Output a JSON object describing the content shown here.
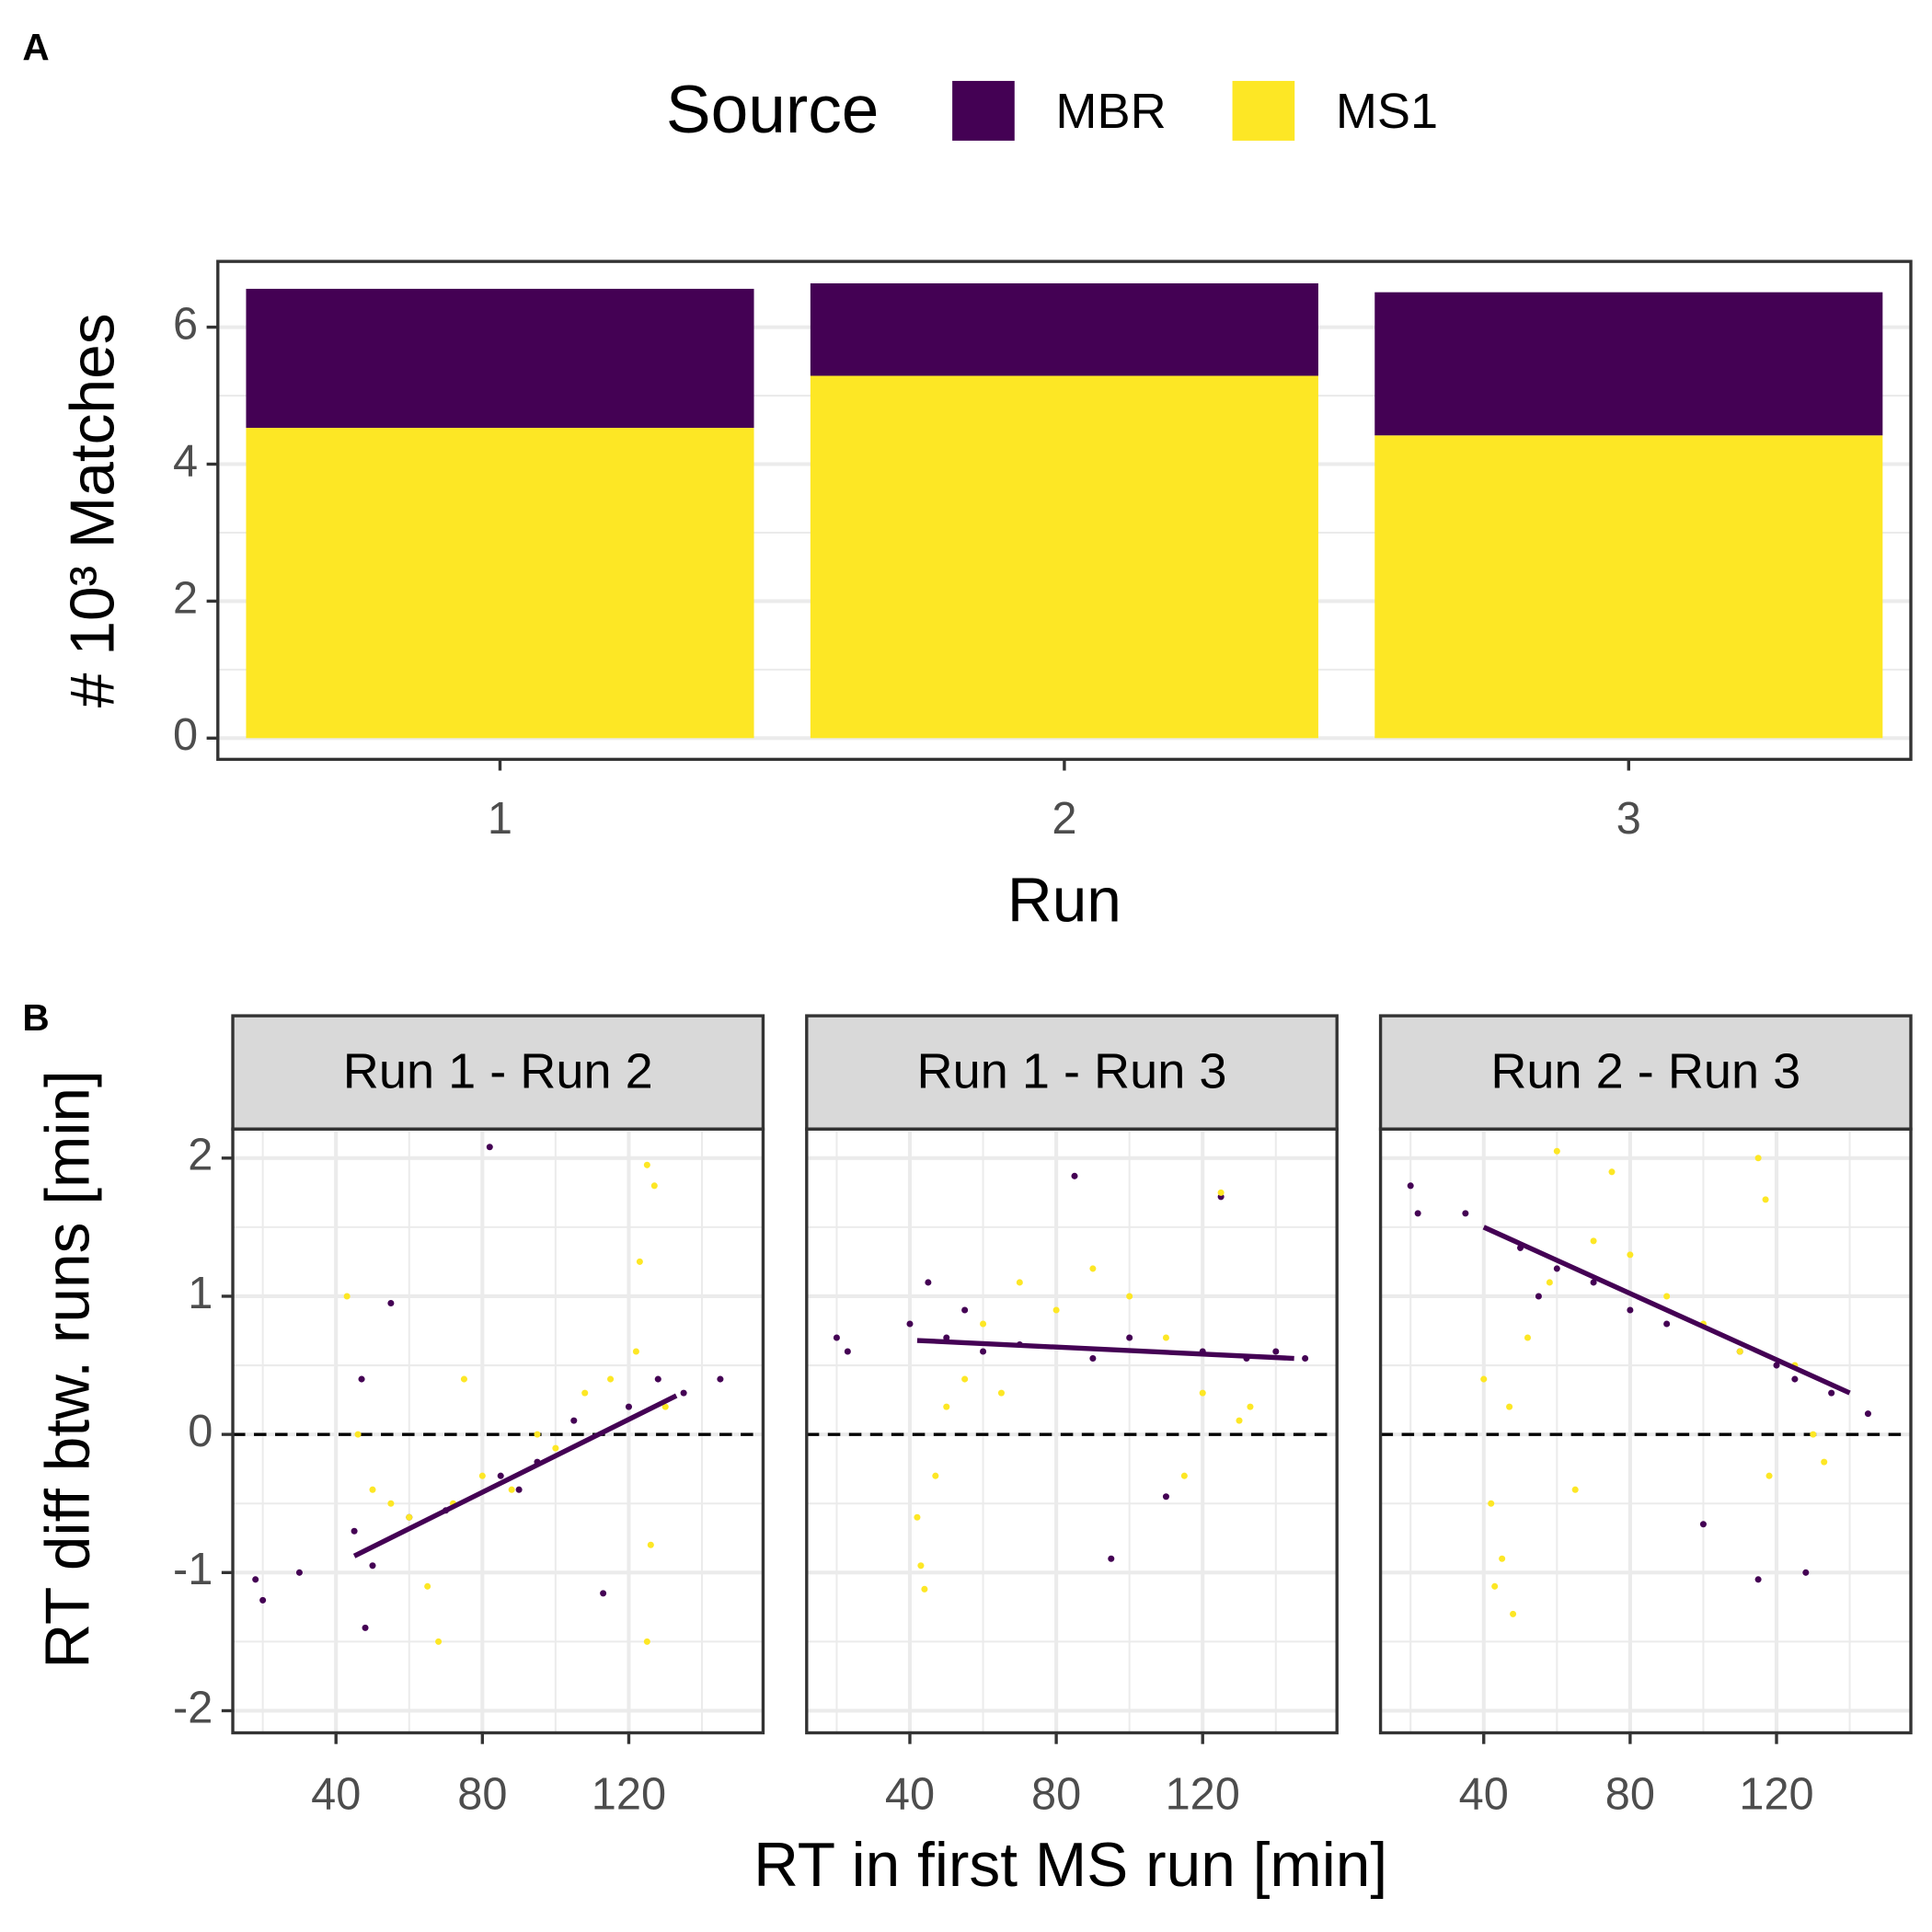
{
  "chart_data": [
    {
      "type": "bar",
      "tag": "A",
      "stacked": true,
      "y_label": "# 10³ Matches",
      "x_label": "Run",
      "legend_title": "Source",
      "legend_position": "top",
      "categories": [
        "1",
        "2",
        "3"
      ],
      "series": [
        {
          "name": "MBR",
          "color": "#440154",
          "values": [
            2.03,
            1.35,
            2.09
          ]
        },
        {
          "name": "MS1",
          "color": "#FDE725",
          "values": [
            4.53,
            5.29,
            4.42
          ]
        }
      ],
      "ylim": [
        -0.31,
        6.96
      ],
      "yticks": [
        0,
        2,
        4,
        6
      ],
      "minor_yticks": [
        1,
        3,
        5
      ],
      "grid": true
    },
    {
      "type": "scatter",
      "tag": "B",
      "y_label": "RT diff btw. runs [min]",
      "x_label": "RT in first MS run [min]",
      "xlim": [
        11.8,
        156.7
      ],
      "xticks": [
        40,
        80,
        120
      ],
      "minor_xticks": [
        20,
        60,
        100,
        140
      ],
      "ylim": [
        -2.16,
        2.21
      ],
      "yticks": [
        -2,
        -1,
        0,
        1,
        2
      ],
      "minor_yticks": [
        -1.5,
        -0.5,
        0.5,
        1.5
      ],
      "grid": true,
      "reference_line": 0,
      "facets": [
        {
          "title": "Run 1 - Run 2",
          "series": [
            {
              "color": "#440154",
              "x": [
                18,
                20,
                30,
                45,
                48,
                50,
                55,
                60,
                70,
                82,
                85,
                95,
                105,
                113,
                120,
                128,
                135,
                145,
                47,
                90
              ],
              "y": [
                -1.05,
                -1.2,
                -1.0,
                -0.7,
                -1.4,
                -0.95,
                0.95,
                -0.6,
                -0.55,
                2.08,
                -0.3,
                -0.2,
                0.1,
                -1.15,
                0.2,
                0.4,
                0.3,
                0.4,
                0.4,
                -0.4
              ]
            },
            {
              "color": "#FDE725",
              "x": [
                43,
                46,
                50,
                55,
                60,
                65,
                68,
                72,
                80,
                88,
                95,
                100,
                108,
                115,
                122,
                123,
                125,
                126,
                127,
                125,
                130,
                75
              ],
              "y": [
                1.0,
                0.0,
                -0.4,
                -0.5,
                -0.6,
                -1.1,
                -1.5,
                -0.5,
                -0.3,
                -0.4,
                0.0,
                -0.1,
                0.3,
                0.4,
                0.6,
                1.25,
                1.95,
                -0.8,
                1.8,
                -1.5,
                0.2,
                0.4
              ]
            }
          ],
          "fit": {
            "color": "#440154",
            "x": [
              45,
              133
            ],
            "y": [
              -0.88,
              0.28
            ]
          }
        },
        {
          "title": "Run 1 - Run 3",
          "series": [
            {
              "color": "#440154",
              "x": [
                20,
                23,
                40,
                45,
                50,
                60,
                70,
                85,
                90,
                95,
                100,
                110,
                120,
                125,
                132,
                140,
                148,
                55
              ],
              "y": [
                0.7,
                0.6,
                0.8,
                1.1,
                0.7,
                0.6,
                0.65,
                1.87,
                0.55,
                -0.9,
                0.7,
                -0.45,
                0.6,
                1.72,
                0.55,
                0.6,
                0.55,
                0.9
              ]
            },
            {
              "color": "#FDE725",
              "x": [
                42,
                43,
                44,
                47,
                50,
                55,
                60,
                70,
                80,
                90,
                100,
                110,
                115,
                120,
                125,
                130,
                133,
                65
              ],
              "y": [
                -0.6,
                -0.95,
                -1.12,
                -0.3,
                0.2,
                0.4,
                0.8,
                1.1,
                0.9,
                1.2,
                1.0,
                0.7,
                -0.3,
                0.3,
                1.75,
                0.1,
                0.2,
                0.3
              ]
            }
          ],
          "fit": {
            "color": "#440154",
            "x": [
              42,
              145
            ],
            "y": [
              0.68,
              0.55
            ]
          }
        },
        {
          "title": "Run 2 - Run 3",
          "series": [
            {
              "color": "#440154",
              "x": [
                20,
                22,
                35,
                50,
                55,
                60,
                70,
                80,
                90,
                100,
                110,
                115,
                120,
                125,
                128,
                135,
                145
              ],
              "y": [
                1.8,
                1.6,
                1.6,
                1.35,
                1.0,
                1.2,
                1.1,
                0.9,
                0.8,
                -0.65,
                0.6,
                -1.05,
                0.5,
                0.4,
                -1.0,
                0.3,
                0.15
              ]
            },
            {
              "color": "#FDE725",
              "x": [
                40,
                42,
                43,
                45,
                48,
                47,
                52,
                58,
                60,
                65,
                70,
                75,
                80,
                90,
                100,
                110,
                115,
                117,
                118,
                125,
                130,
                133
              ],
              "y": [
                0.4,
                -0.5,
                -1.1,
                -0.9,
                -1.3,
                0.2,
                0.7,
                1.1,
                2.05,
                -0.4,
                1.4,
                1.9,
                1.3,
                1.0,
                0.8,
                0.6,
                2.0,
                1.7,
                -0.3,
                0.5,
                0.0,
                -0.2
              ]
            }
          ],
          "fit": {
            "color": "#440154",
            "x": [
              40,
              140
            ],
            "y": [
              1.5,
              0.3
            ]
          }
        }
      ]
    }
  ]
}
